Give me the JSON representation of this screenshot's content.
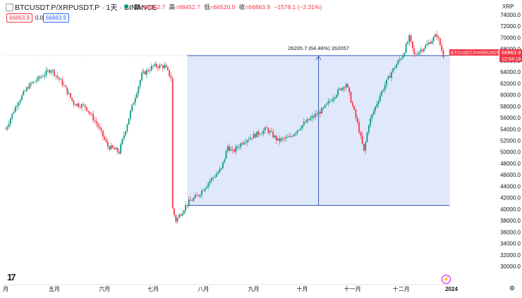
{
  "header": {
    "symbol": "BTCUSDT.P/XRPUSDT.P · 1天 · BINANCE",
    "ohlc": [
      {
        "label": "開",
        "value": "=68452.7"
      },
      {
        "label": "高",
        "value": "=68452.7"
      },
      {
        "label": "低",
        "value": "=66520.0"
      },
      {
        "label": "收",
        "value": "=66863.9"
      },
      {
        "label": "",
        "value": "−1578.1 (−2.31%)"
      }
    ],
    "price_red": "66863.9",
    "price_zero": "0.0",
    "price_blue": "66863.9",
    "unit": "XRP"
  },
  "colors": {
    "up": "#089981",
    "down": "#f23645",
    "range_fill": "#dde5fb",
    "range_line": "#3b5bb5"
  },
  "icons": {
    "logo": "tradingview-logo-icon",
    "alert": "lightning-icon",
    "settings": "gear-icon"
  },
  "labels": {
    "last_price": "66863.9",
    "symbol_tag": "BTCUSDT.P/XRPUSDT.P",
    "countdown": "12:04:18",
    "range_text": "26205.7 (64.46%) 262057"
  },
  "chart_data": {
    "type": "candlestick",
    "title": "BTCUSDT.P/XRPUSDT.P · 1天 · BINANCE",
    "xlabel": "",
    "ylabel": "XRP",
    "ylim": [
      30000,
      74000
    ],
    "y_ticks": [
      30000,
      32000,
      34000,
      36000,
      38000,
      40000,
      42000,
      44000,
      46000,
      48000,
      50000,
      52000,
      54000,
      56000,
      58000,
      60000,
      62000,
      64000,
      66000,
      68000,
      70000,
      72000,
      74000
    ],
    "x_ticks": [
      {
        "label": "月",
        "date": "2023-04-01"
      },
      {
        "label": "五月",
        "date": "2023-05-01"
      },
      {
        "label": "六月",
        "date": "2023-06-01"
      },
      {
        "label": "七月",
        "date": "2023-07-01"
      },
      {
        "label": "八月",
        "date": "2023-08-01"
      },
      {
        "label": "九月",
        "date": "2023-09-01"
      },
      {
        "label": "十月",
        "date": "2023-10-01"
      },
      {
        "label": "十一月",
        "date": "2023-11-01"
      },
      {
        "label": "十二月",
        "date": "2023-12-01"
      },
      {
        "label": "2024",
        "date": "2024-01-01"
      }
    ],
    "series": [
      {
        "name": "BTCUSDT.P/XRPUSDT.P",
        "x": [
          "2023-04-01",
          "2023-04-08",
          "2023-04-15",
          "2023-04-22",
          "2023-04-29",
          "2023-05-06",
          "2023-05-13",
          "2023-05-20",
          "2023-05-27",
          "2023-06-03",
          "2023-06-10",
          "2023-06-17",
          "2023-06-24",
          "2023-07-01",
          "2023-07-08",
          "2023-07-12",
          "2023-07-13",
          "2023-07-15",
          "2023-07-22",
          "2023-07-29",
          "2023-08-05",
          "2023-08-12",
          "2023-08-16",
          "2023-08-19",
          "2023-08-26",
          "2023-09-02",
          "2023-09-09",
          "2023-09-16",
          "2023-09-23",
          "2023-09-30",
          "2023-10-07",
          "2023-10-14",
          "2023-10-21",
          "2023-10-28",
          "2023-11-04",
          "2023-11-08",
          "2023-11-11",
          "2023-11-18",
          "2023-11-25",
          "2023-12-02",
          "2023-12-06",
          "2023-12-09",
          "2023-12-16",
          "2023-12-23",
          "2023-12-27"
        ],
        "y": [
          54000,
          58500,
          61500,
          63000,
          64500,
          62000,
          58500,
          58000,
          55000,
          51000,
          50000,
          57000,
          63500,
          65000,
          65000,
          63000,
          40000,
          38000,
          41000,
          42500,
          45000,
          47000,
          51000,
          50000,
          52000,
          53000,
          54000,
          52000,
          52500,
          54500,
          56000,
          57500,
          60000,
          62000,
          55000,
          50000,
          55000,
          60000,
          64000,
          67000,
          70000,
          67000,
          68500,
          70500,
          66900
        ]
      }
    ],
    "range_measure": {
      "start_date": "2023-07-22",
      "end_date": "2023-12-31",
      "low": 40658,
      "high": 66864,
      "text": "26205.7 (64.46%) 262057"
    },
    "last_price": 66863.9
  }
}
